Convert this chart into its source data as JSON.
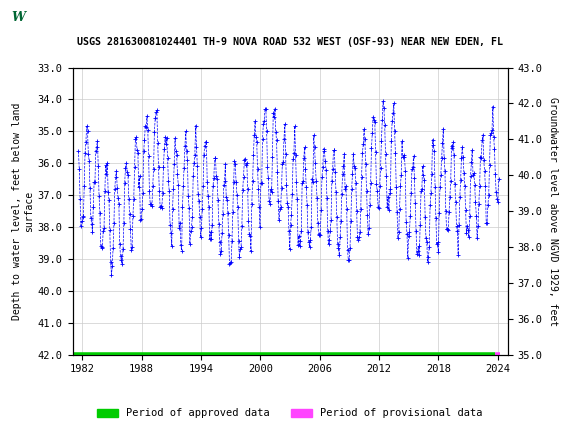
{
  "title": "USGS 281630081024401 TH-9 NOVA ROAD 532 WEST (OSF-93) NEAR NEW EDEN, FL",
  "ylabel_left": "Depth to water level, feet below land\nsurface",
  "ylabel_right": "Groundwater level above NGVD 1929, feet",
  "xlabel": "",
  "ylim_left": [
    42.0,
    33.0
  ],
  "ylim_right": [
    35.0,
    43.0
  ],
  "xlim": [
    1981,
    2025
  ],
  "xticks": [
    1982,
    1988,
    1994,
    2000,
    2006,
    2012,
    2018,
    2024
  ],
  "yticks_left": [
    33.0,
    34.0,
    35.0,
    36.0,
    37.0,
    38.0,
    39.0,
    40.0,
    41.0,
    42.0
  ],
  "yticks_right": [
    35.0,
    36.0,
    37.0,
    38.0,
    39.0,
    40.0,
    41.0,
    42.0,
    43.0
  ],
  "data_color": "#0000ff",
  "approved_color": "#00cc00",
  "provisional_color": "#ff44ff",
  "header_color": "#006633",
  "background_color": "#ffffff",
  "plot_background": "#ffffff",
  "grid_color": "#cccccc",
  "figsize": [
    5.8,
    4.3
  ],
  "dpi": 100
}
